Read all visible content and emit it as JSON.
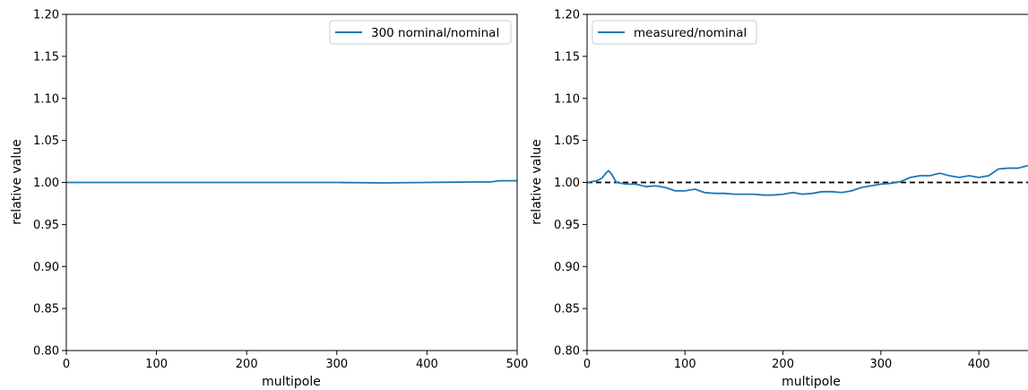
{
  "chart_data": [
    {
      "type": "line",
      "xlabel": "multipole",
      "ylabel": "relative value",
      "xlim": [
        0,
        500
      ],
      "ylim": [
        0.8,
        1.2
      ],
      "xticks": [
        "0",
        "100",
        "200",
        "300",
        "400",
        "500"
      ],
      "yticks": [
        "0.80",
        "0.85",
        "0.90",
        "0.95",
        "1.00",
        "1.05",
        "1.10",
        "1.15",
        "1.20"
      ],
      "legend_position": "upper right",
      "series": [
        {
          "name": "300 nominal/nominal",
          "color": "#1f77b4",
          "x": [
            0,
            50,
            100,
            150,
            200,
            250,
            300,
            350,
            400,
            450,
            470,
            480,
            500
          ],
          "y": [
            1.0,
            1.0,
            1.0,
            1.0,
            1.0,
            1.0,
            1.0,
            0.9995,
            1.0,
            1.0005,
            1.0005,
            1.002,
            1.002
          ]
        }
      ]
    },
    {
      "type": "line",
      "xlabel": "multipole",
      "ylabel": "relative value",
      "xlim": [
        0,
        450
      ],
      "ylim": [
        0.8,
        1.2
      ],
      "xticks": [
        "0",
        "100",
        "200",
        "300",
        "400"
      ],
      "yticks": [
        "0.80",
        "0.85",
        "0.90",
        "0.95",
        "1.00",
        "1.05",
        "1.10",
        "1.15",
        "1.20"
      ],
      "legend_position": "upper left",
      "reference_line": {
        "y": 1.0,
        "style": "dashed",
        "color": "#000000"
      },
      "series": [
        {
          "name": "measured/nominal",
          "color": "#1f77b4",
          "x": [
            0,
            10,
            15,
            20,
            22,
            25,
            30,
            40,
            50,
            60,
            70,
            80,
            90,
            100,
            110,
            120,
            130,
            140,
            150,
            160,
            170,
            180,
            190,
            200,
            210,
            220,
            230,
            240,
            250,
            260,
            270,
            280,
            290,
            300,
            310,
            320,
            330,
            340,
            350,
            360,
            370,
            380,
            390,
            400,
            410,
            420,
            430,
            440,
            450
          ],
          "y": [
            1.0,
            1.002,
            1.005,
            1.012,
            1.014,
            1.01,
            1.0,
            0.998,
            0.998,
            0.995,
            0.996,
            0.994,
            0.99,
            0.99,
            0.992,
            0.988,
            0.987,
            0.987,
            0.986,
            0.986,
            0.986,
            0.985,
            0.985,
            0.986,
            0.988,
            0.986,
            0.987,
            0.989,
            0.989,
            0.988,
            0.99,
            0.994,
            0.996,
            0.998,
            0.999,
            1.001,
            1.006,
            1.008,
            1.008,
            1.011,
            1.008,
            1.006,
            1.008,
            1.006,
            1.008,
            1.016,
            1.017,
            1.017,
            1.02
          ]
        }
      ]
    }
  ]
}
